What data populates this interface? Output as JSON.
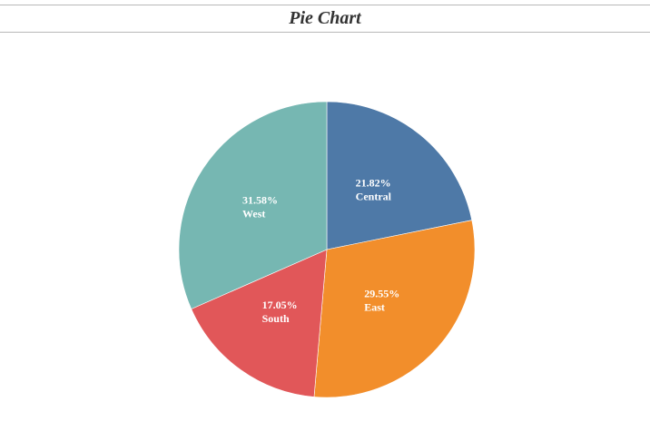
{
  "chart_data": {
    "type": "pie",
    "title": "Pie Chart",
    "slices": [
      {
        "label": "Central",
        "value": 21.82,
        "percent_label": "21.82%",
        "color": "#4e79a7"
      },
      {
        "label": "East",
        "value": 29.55,
        "percent_label": "29.55%",
        "color": "#f28e2b"
      },
      {
        "label": "South",
        "value": 17.05,
        "percent_label": "17.05%",
        "color": "#e15759"
      },
      {
        "label": "West",
        "value": 31.58,
        "percent_label": "31.58%",
        "color": "#76b7b2"
      }
    ],
    "legend": "none",
    "start": "12 o'clock",
    "direction": "clockwise"
  }
}
